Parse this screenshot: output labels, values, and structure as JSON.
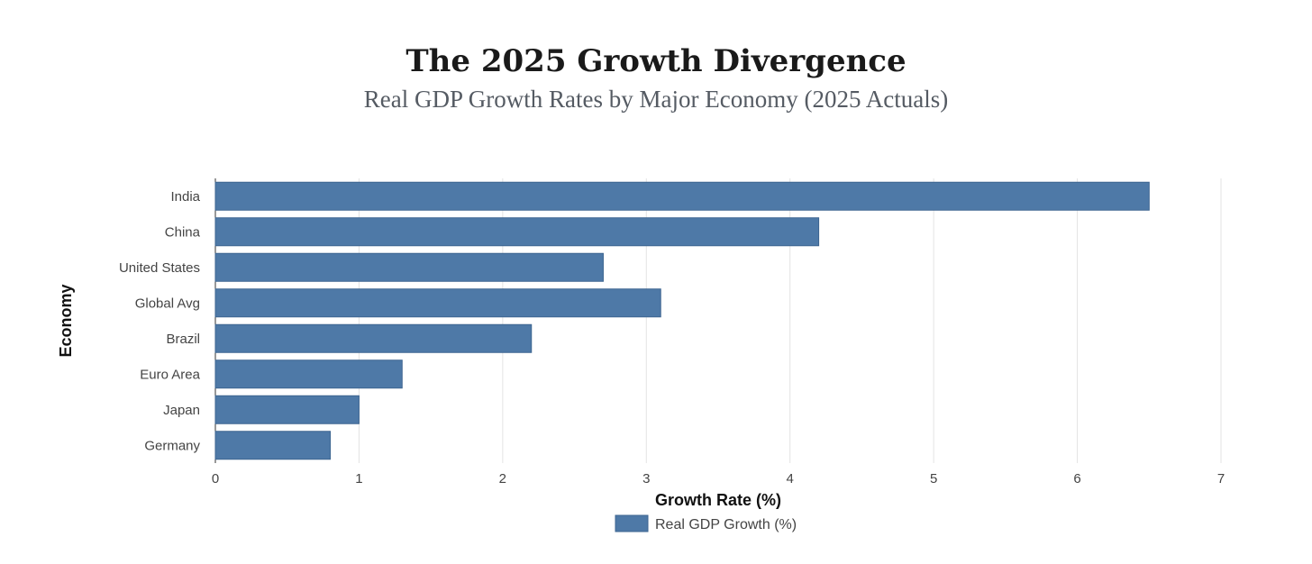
{
  "chart_data": {
    "type": "bar",
    "orientation": "horizontal",
    "title": "The 2025 Growth Divergence",
    "subtitle": "Real GDP Growth Rates by Major Economy (2025 Actuals)",
    "categories": [
      "India",
      "China",
      "United States",
      "Global Avg",
      "Brazil",
      "Euro Area",
      "Japan",
      "Germany"
    ],
    "series": [
      {
        "name": "Real GDP Growth (%)",
        "values": [
          6.5,
          4.2,
          2.7,
          3.1,
          2.2,
          1.3,
          1.0,
          0.8
        ],
        "color": "#4e79a7"
      }
    ],
    "xlabel": "Growth Rate (%)",
    "ylabel": "Economy",
    "xlim": [
      0,
      7
    ],
    "xticks": [
      "0",
      "1",
      "2",
      "3",
      "4",
      "5",
      "6",
      "7"
    ],
    "grid": "vertical",
    "legend": "bottom-center"
  }
}
